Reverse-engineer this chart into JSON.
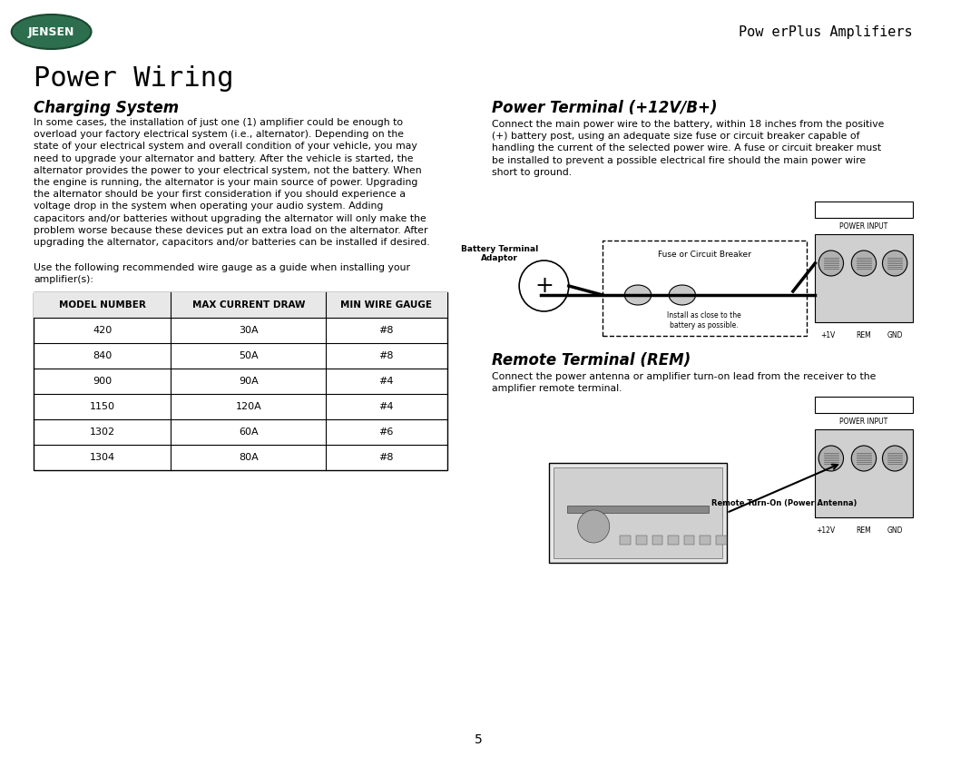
{
  "page_title": "Power Wiring",
  "header_right": "Pow erPlus Amplifiers",
  "section1_title": "Charging System",
  "section1_body": "In some cases, the installation of just one (1) amplifier could be enough to\noverload your factory electrical system (i.e., alternator). Depending on the\nstate of your electrical system and overall condition of your vehicle, you may\nneed to upgrade your alternator and battery. After the vehicle is started, the\nalternator provides the power to your electrical system, not the battery. When\nthe engine is running, the alternator is your main source of power. Upgrading\nthe alternator should be your first consideration if you should experience a\nvoltage drop in the system when operating your audio system. Adding\ncapacitors and/or batteries without upgrading the alternator will only make the\nproblem worse because these devices put an extra load on the alternator. After\nupgrading the alternator, capacitors and/or batteries can be installed if desired.",
  "section1_body2": "Use the following recommended wire gauge as a guide when installing your\namplifier(s):",
  "table_headers": [
    "MODEL NUMBER",
    "MAX CURRENT DRAW",
    "MIN WIRE GAUGE"
  ],
  "table_rows": [
    [
      "420",
      "30A",
      "#8"
    ],
    [
      "840",
      "50A",
      "#8"
    ],
    [
      "900",
      "90A",
      "#4"
    ],
    [
      "1150",
      "120A",
      "#4"
    ],
    [
      "1302",
      "60A",
      "#6"
    ],
    [
      "1304",
      "80A",
      "#8"
    ]
  ],
  "section2_title": "Power Terminal (+12V/B+)",
  "section2_body": "Connect the main power wire to the battery, within 18 inches from the positive\n(+) battery post, using an adequate size fuse or circuit breaker capable of\nhandling the current of the selected power wire. A fuse or circuit breaker must\nbe installed to prevent a possible electrical fire should the main power wire\nshort to ground.",
  "section3_title": "Remote Terminal (REM)",
  "section3_body": "Connect the power antenna or amplifier turn-on lead from the receiver to the\namplifier remote terminal.",
  "page_number": "5",
  "bg_color": "#ffffff",
  "text_color": "#000000"
}
